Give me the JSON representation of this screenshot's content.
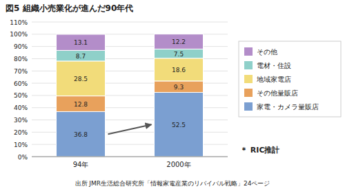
{
  "chart_data": {
    "type": "bar",
    "stacked": true,
    "title": "図5  組織小売業化が進んだ90年代",
    "categories": [
      "94年",
      "2000年"
    ],
    "series": [
      {
        "name": "家電・カメラ量販店",
        "values": [
          36.8,
          52.5
        ]
      },
      {
        "name": "その他量販店",
        "values": [
          12.8,
          9.3
        ]
      },
      {
        "name": "地域家電店",
        "values": [
          28.5,
          18.6
        ]
      },
      {
        "name": "電材・住設",
        "values": [
          8.7,
          7.5
        ]
      },
      {
        "name": "その他",
        "values": [
          13.1,
          12.2
        ]
      }
    ],
    "ylim": [
      0,
      110
    ],
    "yticks": [
      {
        "value": 0,
        "label": "0%"
      },
      {
        "value": 10,
        "label": "10%"
      },
      {
        "value": 20,
        "label": "20%"
      },
      {
        "value": 30,
        "label": "30%"
      },
      {
        "value": 40,
        "label": "40%"
      },
      {
        "value": 50,
        "label": "50%"
      },
      {
        "value": 60,
        "label": "60%"
      },
      {
        "value": 70,
        "label": "70%"
      },
      {
        "value": 80,
        "label": "80%"
      },
      {
        "value": 90,
        "label": "90%"
      },
      {
        "value": 100,
        "label": "100%"
      },
      {
        "value": 110,
        "label": "110%"
      }
    ],
    "grid": true,
    "data_labels": true,
    "legend": "right",
    "annotations": [
      "＊  RIC推計",
      "出所  JMR生活総合研究所「情報家電産業のリバイバル戦略」24ページ"
    ]
  }
}
